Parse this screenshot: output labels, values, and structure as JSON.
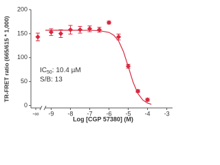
{
  "chart_data": {
    "type": "scatter",
    "y_label": "TR-FRET ratio (665/615 * 1,000)",
    "x_label": "Log [CGP 57380] (M)",
    "color": "#d8283f",
    "control": {
      "label": "-∞",
      "value": 143,
      "error": 8
    },
    "x": [
      -9,
      -8.5,
      -8,
      -7.5,
      -7,
      -6.5,
      -6,
      -5.5,
      -5,
      -4.5,
      -4
    ],
    "values": [
      153,
      150,
      158,
      158,
      160,
      158,
      173,
      143,
      82,
      30,
      12
    ],
    "errors": [
      7,
      8,
      9,
      7,
      6,
      5,
      3,
      6,
      4,
      3,
      3
    ],
    "fit": {
      "x": [
        -9.3,
        -8,
        -7,
        -6.5,
        -6,
        -5.75,
        -5.5,
        -5.25,
        -5,
        -4.75,
        -4.5,
        -4.25,
        -4,
        -3.8
      ],
      "values": [
        157,
        157,
        156.9,
        156.2,
        152.5,
        146.7,
        134.7,
        112.6,
        81.2,
        48.9,
        25.1,
        11.7,
        5.1,
        2.6
      ]
    },
    "annotation": {
      "ic": "IC",
      "sub": "50",
      "rest": ": 10.4 µM",
      "sb": "S/B: 13"
    },
    "xlim": [
      -9.3,
      -2.7
    ],
    "xticks": [
      -9,
      -8,
      -7,
      -6,
      -5,
      -4,
      -3
    ],
    "ylim": [
      -5,
      200
    ],
    "yticks": [
      0,
      50,
      100,
      150,
      200
    ]
  }
}
